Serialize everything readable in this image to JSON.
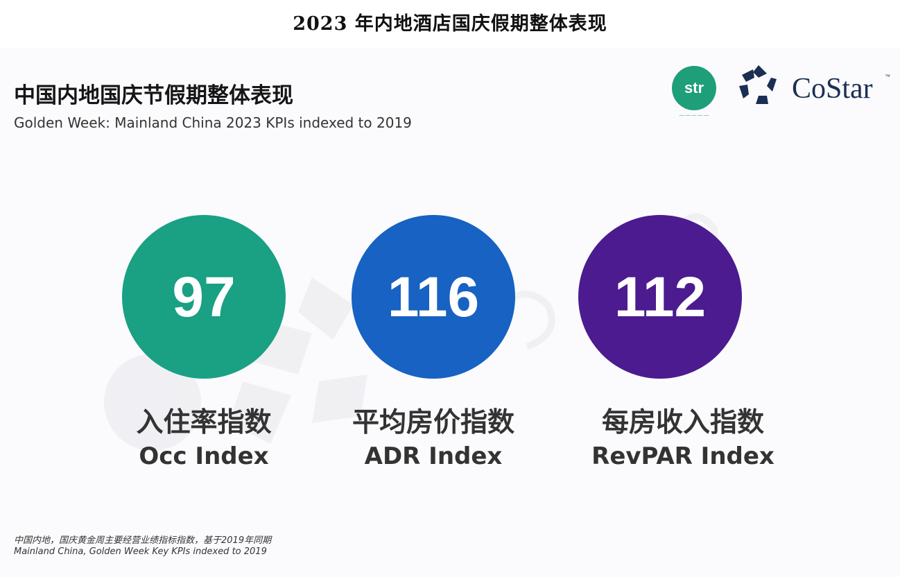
{
  "page_title": "2023 年内地酒店国庆假期整体表现",
  "slide": {
    "title": "中国内地国庆节假期整体表现",
    "subtitle": "Golden Week: Mainland China 2023 KPIs indexed to 2019",
    "footnote_cn": "中国内地，国庆黄金周主要经营业绩指标指数，基于2019年同期",
    "footnote_en": "Mainland China, Golden Week Key KPIs indexed to 2019"
  },
  "logos": {
    "str": "str",
    "costar": "CoStar",
    "costar_tm": "™",
    "icon_names": [
      "str-logo-icon",
      "costar-star-icon"
    ],
    "colors": {
      "str": "#1f9e7a",
      "costar": "#1b2f53"
    }
  },
  "chart_data": {
    "type": "kpi_circles",
    "title": "中国内地国庆节假期整体表现",
    "subtitle": "Golden Week: Mainland China 2023 KPIs indexed to 2019",
    "items": [
      {
        "value": 97,
        "label_cn": "入住率指数",
        "label_en": "Occ Index",
        "color": "#1aa083"
      },
      {
        "value": 116,
        "label_cn": "平均房价指数",
        "label_en": "ADR Index",
        "color": "#1762c2"
      },
      {
        "value": 112,
        "label_cn": "每房收入指数",
        "label_en": "RevPAR Index",
        "color": "#4b1b8f"
      }
    ]
  }
}
